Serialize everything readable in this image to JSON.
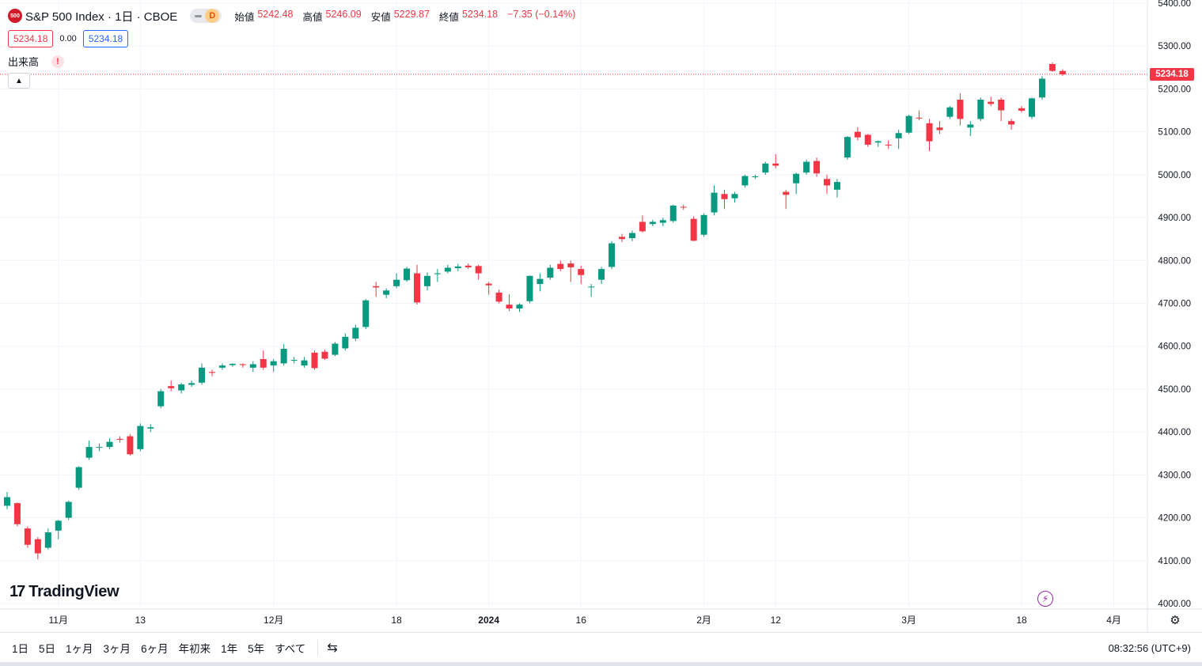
{
  "header": {
    "symbol_badge": "500",
    "title": "S&P 500 Index · 1日 · CBOE",
    "mode_letter": "D",
    "ohlc": {
      "open_label": "始値",
      "open": "5242.48",
      "high_label": "高値",
      "high": "5246.09",
      "low_label": "安値",
      "low": "5229.87",
      "close_label": "終値",
      "close": "5234.18",
      "change": "−7.35 (−0.14%)"
    },
    "price_box_1": "5234.18",
    "spread": "0.00",
    "price_box_2": "5234.18",
    "volume_label": "出来高",
    "warning_glyph": "!"
  },
  "logo": {
    "mark": "17",
    "text": "TradingView"
  },
  "last_price_tag": "5234.18",
  "colors": {
    "up": "#089981",
    "down": "#f23645",
    "grid": "#f0f3fa",
    "text": "#131722"
  },
  "chart_data": {
    "type": "candlestick",
    "ylim": [
      4000,
      5400
    ],
    "y_ticks": [
      4000,
      4100,
      4200,
      4300,
      4400,
      4500,
      4600,
      4700,
      4800,
      4900,
      5000,
      5100,
      5200,
      5300,
      5400
    ],
    "x_labels": [
      {
        "label": "11月",
        "index": 5
      },
      {
        "label": "13",
        "index": 13
      },
      {
        "label": "12月",
        "index": 26
      },
      {
        "label": "18",
        "index": 38
      },
      {
        "label": "2024",
        "index": 47,
        "bold": true
      },
      {
        "label": "16",
        "index": 56
      },
      {
        "label": "2月",
        "index": 68
      },
      {
        "label": "12",
        "index": 75
      },
      {
        "label": "3月",
        "index": 88
      },
      {
        "label": "18",
        "index": 99
      },
      {
        "label": "4月",
        "index": 108
      }
    ],
    "last_price": 5234.18,
    "candles": [
      {
        "o": 4228,
        "h": 4260,
        "l": 4220,
        "c": 4248
      },
      {
        "o": 4234,
        "h": 4236,
        "l": 4180,
        "c": 4185
      },
      {
        "o": 4175,
        "h": 4180,
        "l": 4130,
        "c": 4137
      },
      {
        "o": 4150,
        "h": 4155,
        "l": 4103,
        "c": 4117
      },
      {
        "o": 4130,
        "h": 4175,
        "l": 4126,
        "c": 4166
      },
      {
        "o": 4170,
        "h": 4195,
        "l": 4150,
        "c": 4193
      },
      {
        "o": 4200,
        "h": 4240,
        "l": 4195,
        "c": 4237
      },
      {
        "o": 4270,
        "h": 4320,
        "l": 4265,
        "c": 4318
      },
      {
        "o": 4340,
        "h": 4380,
        "l": 4335,
        "c": 4365
      },
      {
        "o": 4365,
        "h": 4373,
        "l": 4355,
        "c": 4365
      },
      {
        "o": 4365,
        "h": 4385,
        "l": 4360,
        "c": 4377
      },
      {
        "o": 4384,
        "h": 4390,
        "l": 4375,
        "c": 4382
      },
      {
        "o": 4390,
        "h": 4395,
        "l": 4345,
        "c": 4348
      },
      {
        "o": 4360,
        "h": 4420,
        "l": 4355,
        "c": 4414
      },
      {
        "o": 4408,
        "h": 4418,
        "l": 4400,
        "c": 4411
      },
      {
        "o": 4460,
        "h": 4500,
        "l": 4455,
        "c": 4495
      },
      {
        "o": 4507,
        "h": 4520,
        "l": 4495,
        "c": 4502
      },
      {
        "o": 4497,
        "h": 4515,
        "l": 4490,
        "c": 4511
      },
      {
        "o": 4510,
        "h": 4520,
        "l": 4505,
        "c": 4514
      },
      {
        "o": 4515,
        "h": 4560,
        "l": 4510,
        "c": 4550
      },
      {
        "o": 4540,
        "h": 4545,
        "l": 4530,
        "c": 4538
      },
      {
        "o": 4550,
        "h": 4560,
        "l": 4545,
        "c": 4555
      },
      {
        "o": 4556,
        "h": 4560,
        "l": 4552,
        "c": 4559
      },
      {
        "o": 4558,
        "h": 4560,
        "l": 4550,
        "c": 4556
      },
      {
        "o": 4550,
        "h": 4565,
        "l": 4540,
        "c": 4558
      },
      {
        "o": 4570,
        "h": 4590,
        "l": 4545,
        "c": 4550
      },
      {
        "o": 4555,
        "h": 4570,
        "l": 4540,
        "c": 4565
      },
      {
        "o": 4560,
        "h": 4605,
        "l": 4555,
        "c": 4594
      },
      {
        "o": 4568,
        "h": 4575,
        "l": 4560,
        "c": 4568
      },
      {
        "o": 4555,
        "h": 4575,
        "l": 4550,
        "c": 4567
      },
      {
        "o": 4585,
        "h": 4590,
        "l": 4545,
        "c": 4549
      },
      {
        "o": 4587,
        "h": 4592,
        "l": 4568,
        "c": 4571
      },
      {
        "o": 4580,
        "h": 4610,
        "l": 4577,
        "c": 4606
      },
      {
        "o": 4595,
        "h": 4630,
        "l": 4590,
        "c": 4622
      },
      {
        "o": 4618,
        "h": 4650,
        "l": 4612,
        "c": 4643
      },
      {
        "o": 4645,
        "h": 4710,
        "l": 4640,
        "c": 4707
      },
      {
        "o": 4740,
        "h": 4750,
        "l": 4715,
        "c": 4737
      },
      {
        "o": 4720,
        "h": 4735,
        "l": 4712,
        "c": 4730
      },
      {
        "o": 4740,
        "h": 4770,
        "l": 4735,
        "c": 4755
      },
      {
        "o": 4754,
        "h": 4785,
        "l": 4750,
        "c": 4781
      },
      {
        "o": 4770,
        "h": 4790,
        "l": 4697,
        "c": 4702
      },
      {
        "o": 4740,
        "h": 4772,
        "l": 4730,
        "c": 4764
      },
      {
        "o": 4768,
        "h": 4780,
        "l": 4750,
        "c": 4770
      },
      {
        "o": 4774,
        "h": 4790,
        "l": 4770,
        "c": 4783
      },
      {
        "o": 4782,
        "h": 4792,
        "l": 4775,
        "c": 4786
      },
      {
        "o": 4788,
        "h": 4793,
        "l": 4780,
        "c": 4784
      },
      {
        "o": 4787,
        "h": 4790,
        "l": 4755,
        "c": 4770
      },
      {
        "o": 4746,
        "h": 4750,
        "l": 4720,
        "c": 4742
      },
      {
        "o": 4725,
        "h": 4732,
        "l": 4700,
        "c": 4704
      },
      {
        "o": 4697,
        "h": 4721,
        "l": 4682,
        "c": 4688
      },
      {
        "o": 4688,
        "h": 4700,
        "l": 4680,
        "c": 4697
      },
      {
        "o": 4705,
        "h": 4765,
        "l": 4700,
        "c": 4764
      },
      {
        "o": 4745,
        "h": 4770,
        "l": 4728,
        "c": 4757
      },
      {
        "o": 4760,
        "h": 4790,
        "l": 4755,
        "c": 4783
      },
      {
        "o": 4792,
        "h": 4800,
        "l": 4775,
        "c": 4780
      },
      {
        "o": 4793,
        "h": 4800,
        "l": 4750,
        "c": 4784
      },
      {
        "o": 4780,
        "h": 4788,
        "l": 4745,
        "c": 4766
      },
      {
        "o": 4739,
        "h": 4745,
        "l": 4715,
        "c": 4739
      },
      {
        "o": 4755,
        "h": 4785,
        "l": 4745,
        "c": 4780
      },
      {
        "o": 4785,
        "h": 4845,
        "l": 4780,
        "c": 4840
      },
      {
        "o": 4855,
        "h": 4862,
        "l": 4843,
        "c": 4850
      },
      {
        "o": 4852,
        "h": 4870,
        "l": 4845,
        "c": 4864
      },
      {
        "o": 4890,
        "h": 4905,
        "l": 4865,
        "c": 4868
      },
      {
        "o": 4885,
        "h": 4895,
        "l": 4880,
        "c": 4890
      },
      {
        "o": 4888,
        "h": 4900,
        "l": 4880,
        "c": 4894
      },
      {
        "o": 4892,
        "h": 4930,
        "l": 4888,
        "c": 4928
      },
      {
        "o": 4925,
        "h": 4930,
        "l": 4918,
        "c": 4924
      },
      {
        "o": 4897,
        "h": 4903,
        "l": 4845,
        "c": 4846
      },
      {
        "o": 4860,
        "h": 4910,
        "l": 4855,
        "c": 4906
      },
      {
        "o": 4912,
        "h": 4975,
        "l": 4905,
        "c": 4958
      },
      {
        "o": 4955,
        "h": 4965,
        "l": 4920,
        "c": 4943
      },
      {
        "o": 4945,
        "h": 4960,
        "l": 4935,
        "c": 4955
      },
      {
        "o": 4975,
        "h": 5000,
        "l": 4970,
        "c": 4997
      },
      {
        "o": 4995,
        "h": 5000,
        "l": 4990,
        "c": 4996
      },
      {
        "o": 5005,
        "h": 5030,
        "l": 5000,
        "c": 5026
      },
      {
        "o": 5026,
        "h": 5048,
        "l": 5015,
        "c": 5021
      },
      {
        "o": 4960,
        "h": 4965,
        "l": 4920,
        "c": 4953
      },
      {
        "o": 4980,
        "h": 5005,
        "l": 4955,
        "c": 5002
      },
      {
        "o": 5005,
        "h": 5035,
        "l": 5000,
        "c": 5030
      },
      {
        "o": 5032,
        "h": 5040,
        "l": 4995,
        "c": 5003
      },
      {
        "o": 4990,
        "h": 5000,
        "l": 4955,
        "c": 4975
      },
      {
        "o": 4965,
        "h": 4990,
        "l": 4947,
        "c": 4983
      },
      {
        "o": 5040,
        "h": 5090,
        "l": 5035,
        "c": 5088
      },
      {
        "o": 5100,
        "h": 5111,
        "l": 5080,
        "c": 5087
      },
      {
        "o": 5093,
        "h": 5095,
        "l": 5065,
        "c": 5070
      },
      {
        "o": 5075,
        "h": 5080,
        "l": 5065,
        "c": 5078
      },
      {
        "o": 5070,
        "h": 5080,
        "l": 5060,
        "c": 5069
      },
      {
        "o": 5085,
        "h": 5105,
        "l": 5060,
        "c": 5097
      },
      {
        "o": 5098,
        "h": 5140,
        "l": 5095,
        "c": 5137
      },
      {
        "o": 5133,
        "h": 5150,
        "l": 5127,
        "c": 5131
      },
      {
        "o": 5120,
        "h": 5130,
        "l": 5055,
        "c": 5078
      },
      {
        "o": 5110,
        "h": 5125,
        "l": 5095,
        "c": 5104
      },
      {
        "o": 5135,
        "h": 5160,
        "l": 5130,
        "c": 5157
      },
      {
        "o": 5175,
        "h": 5190,
        "l": 5115,
        "c": 5130
      },
      {
        "o": 5110,
        "h": 5125,
        "l": 5090,
        "c": 5117
      },
      {
        "o": 5130,
        "h": 5180,
        "l": 5125,
        "c": 5175
      },
      {
        "o": 5170,
        "h": 5182,
        "l": 5160,
        "c": 5165
      },
      {
        "o": 5175,
        "h": 5180,
        "l": 5125,
        "c": 5150
      },
      {
        "o": 5125,
        "h": 5130,
        "l": 5105,
        "c": 5117
      },
      {
        "o": 5155,
        "h": 5160,
        "l": 5145,
        "c": 5149
      },
      {
        "o": 5135,
        "h": 5180,
        "l": 5130,
        "c": 5178
      },
      {
        "o": 5180,
        "h": 5230,
        "l": 5175,
        "c": 5224
      },
      {
        "o": 5258,
        "h": 5262,
        "l": 5240,
        "c": 5242
      },
      {
        "o": 5242,
        "h": 5246,
        "l": 5230,
        "c": 5234
      }
    ]
  },
  "range_buttons": [
    "1日",
    "5日",
    "1ヶ月",
    "3ヶ月",
    "6ヶ月",
    "年初来",
    "1年",
    "5年",
    "すべて"
  ],
  "time_readout": "08:32:56 (UTC+9)"
}
